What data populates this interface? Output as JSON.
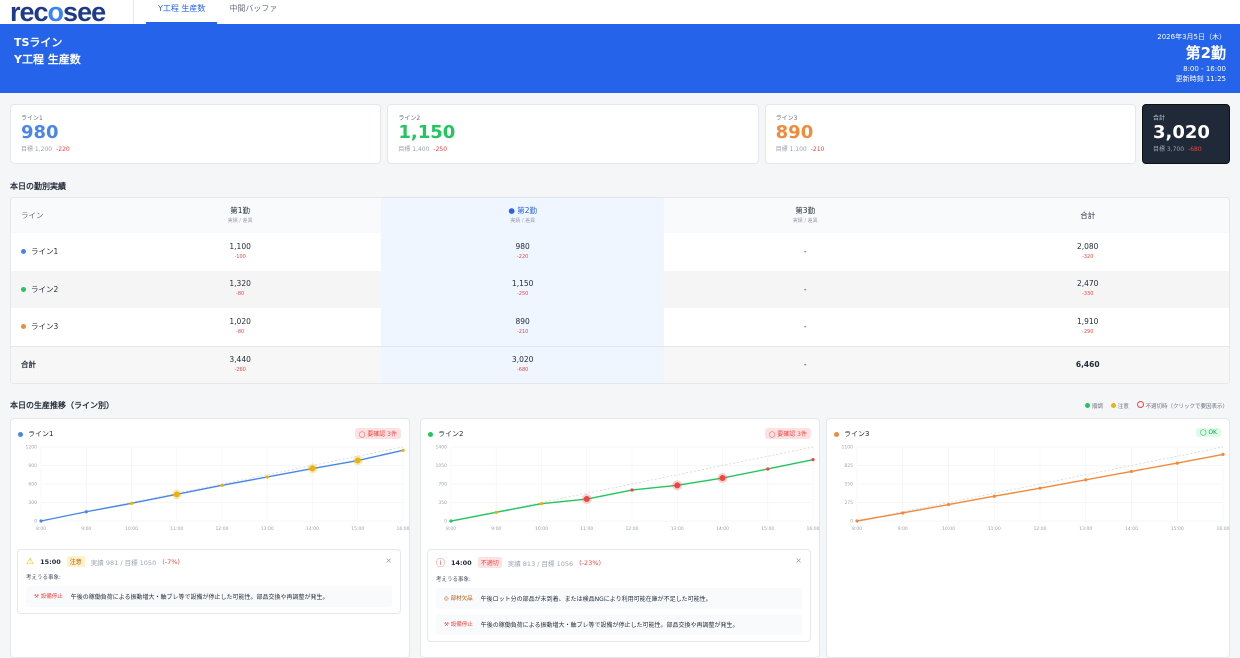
{
  "app": {
    "logo": "recosee",
    "tabs": [
      {
        "label": "Y工程 生産数",
        "active": true
      },
      {
        "label": "中間バッファ",
        "active": false
      }
    ]
  },
  "banner": {
    "line": "TSライン",
    "title": "Y工程 生産数",
    "date": "2026年3月5日（木）",
    "shift": "第2勤",
    "shift_time": "8:00 - 16:00",
    "updated": "更新時刻 11:25"
  },
  "kpis": [
    {
      "label": "ライン1",
      "value": "980",
      "target": "目標 1,200",
      "diff": "-220",
      "color": "#4a86e8"
    },
    {
      "label": "ライン2",
      "value": "1,150",
      "target": "目標 1,400",
      "diff": "-250",
      "color": "#22c55e"
    },
    {
      "label": "ライン3",
      "value": "890",
      "target": "目標 1,100",
      "diff": "-210",
      "color": "#f08a3c"
    },
    {
      "label": "合計",
      "value": "3,020",
      "target": "目標 3,700",
      "diff": "-680",
      "color": "#ffffff"
    }
  ],
  "shift_table": {
    "title": "本日の勤別実績",
    "headers": {
      "line": "ライン",
      "cols": [
        {
          "name": "第1勤",
          "sub": "実績 / 差異"
        },
        {
          "name": "● 第2勤",
          "sub": "実績 / 差異"
        },
        {
          "name": "第3勤",
          "sub": "実績 / 差異"
        },
        {
          "name": "合計",
          "sub": ""
        }
      ]
    },
    "rows": [
      {
        "name": "ライン1",
        "color": "#4a86e8",
        "cells": [
          {
            "v": "1,100",
            "d": "-100"
          },
          {
            "v": "980",
            "d": "-220"
          },
          {
            "v": "-",
            "d": ""
          },
          {
            "v": "2,080",
            "d": "-320"
          }
        ]
      },
      {
        "name": "ライン2",
        "color": "#22c55e",
        "cells": [
          {
            "v": "1,320",
            "d": "-80"
          },
          {
            "v": "1,150",
            "d": "-250"
          },
          {
            "v": "-",
            "d": ""
          },
          {
            "v": "2,470",
            "d": "-330"
          }
        ]
      },
      {
        "name": "ライン3",
        "color": "#f08a3c",
        "cells": [
          {
            "v": "1,020",
            "d": "-80"
          },
          {
            "v": "890",
            "d": "-210"
          },
          {
            "v": "-",
            "d": ""
          },
          {
            "v": "1,910",
            "d": "-290"
          }
        ]
      },
      {
        "name": "合計",
        "color": "",
        "cells": [
          {
            "v": "3,440",
            "d": "-260"
          },
          {
            "v": "3,020",
            "d": "-680"
          },
          {
            "v": "-",
            "d": ""
          },
          {
            "v": "6,460",
            "d": ""
          }
        ]
      }
    ]
  },
  "trend": {
    "title": "本日の生産推移（ライン別）",
    "legend": {
      "ok": "順調",
      "warn": "注意",
      "bad": "不適切時（クリックで要因表示）",
      "colors": {
        "ok": "#22c55e",
        "warn": "#eab308",
        "bad": "#ef4444"
      }
    }
  },
  "chart_data": [
    {
      "type": "line",
      "title": "ライン1",
      "color": "#4a86e8",
      "badge": "要確認 3件",
      "badge_status": "ng",
      "x": [
        "8:00",
        "9:00",
        "10:00",
        "11:00",
        "12:00",
        "13:00",
        "14:00",
        "15:00",
        "16:00"
      ],
      "y": [
        0,
        150,
        286,
        432,
        578,
        714,
        851,
        981,
        1146
      ],
      "point_status": [
        "ok",
        "ok",
        "warn",
        "warn-big",
        "warn",
        "warn",
        "warn-big",
        "warn-big",
        "warn"
      ],
      "target": [
        0,
        1200
      ],
      "yticks": [
        0,
        300,
        600,
        900,
        1200
      ],
      "ylim": [
        0,
        1200
      ]
    },
    {
      "type": "line",
      "title": "ライン2",
      "color": "#22c55e",
      "badge": "要確認 3件",
      "badge_status": "ng",
      "x": [
        "8:00",
        "9:00",
        "10:00",
        "11:00",
        "12:00",
        "13:00",
        "14:00",
        "15:00",
        "16:00"
      ],
      "y": [
        0,
        164,
        328,
        416,
        586,
        675,
        813,
        984,
        1161
      ],
      "point_status": [
        "ok",
        "warn",
        "warn",
        "bad-big",
        "bad",
        "bad-big",
        "bad-big",
        "bad",
        "bad"
      ],
      "target": [
        0,
        1400
      ],
      "yticks": [
        0,
        350,
        700,
        1050,
        1400
      ],
      "ylim": [
        0,
        1400
      ]
    },
    {
      "type": "line",
      "title": "ライン3",
      "color": "#f08a3c",
      "badge": "OK",
      "badge_status": "ok",
      "x": [
        "8:00",
        "9:00",
        "10:00",
        "11:00",
        "12:00",
        "13:00",
        "14:00",
        "15:00",
        "16:00"
      ],
      "y": [
        0,
        119,
        244,
        368,
        488,
        612,
        737,
        861,
        990
      ],
      "point_status": [
        "ok",
        "ok",
        "ok",
        "ok",
        "ok",
        "ok",
        "ok",
        "ok",
        "ok"
      ],
      "target": [
        0,
        1100
      ],
      "yticks": [
        0,
        275,
        550,
        825,
        1100
      ],
      "ylim": [
        0,
        1100
      ]
    }
  ],
  "alerts": [
    {
      "time": "15:00",
      "level": "注意",
      "level_status": "warn",
      "actual": "実績 981 / 目標 1050",
      "pct": "(-7%)",
      "caption": "考えうる事象:",
      "causes": [
        {
          "tag": "設備停止",
          "text": "午後の稼働負荷による振動増大・軸ブレ等で設備が停止した可能性。部品交換や再調整が発生。"
        }
      ]
    },
    {
      "time": "14:00",
      "level": "不適切",
      "level_status": "bad",
      "actual": "実績 813 / 目標 1056",
      "pct": "(-23%)",
      "caption": "考えうる事象:",
      "causes": [
        {
          "tag": "部材欠品",
          "text": "午後ロット分の部品が未到着、または検品NGにより利用可能在庫が不足した可能性。"
        },
        {
          "tag": "設備停止",
          "text": "午後の稼働負荷による振動増大・軸ブレ等で設備が停止した可能性。部品交換や再調整が発生。"
        }
      ]
    }
  ]
}
